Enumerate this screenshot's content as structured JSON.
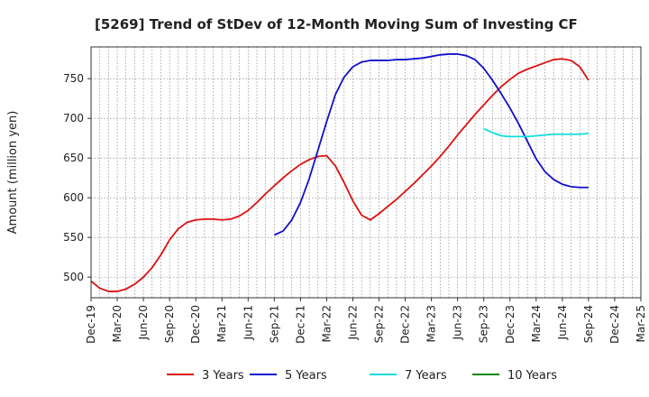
{
  "chart_data": {
    "type": "line",
    "title": "[5269]  Trend of StDev of 12-Month Moving Sum of Investing CF",
    "ylabel": "Amount (million yen)",
    "xlabel": "",
    "ylim": [
      474,
      790
    ],
    "yticks": [
      500,
      550,
      600,
      650,
      700,
      750
    ],
    "xticks": [
      "Dec-19",
      "Mar-20",
      "Jun-20",
      "Sep-20",
      "Dec-20",
      "Mar-21",
      "Jun-21",
      "Sep-21",
      "Dec-21",
      "Mar-22",
      "Jun-22",
      "Sep-22",
      "Dec-22",
      "Mar-23",
      "Jun-23",
      "Sep-23",
      "Dec-23",
      "Mar-24",
      "Jun-24",
      "Sep-24",
      "Dec-24",
      "Mar-25"
    ],
    "grid": true,
    "legend_position": "bottom",
    "series": [
      {
        "name": "3 Years",
        "color": "#dd1111",
        "x_start_index": 0,
        "values": [
          495,
          486,
          482,
          482,
          485,
          491,
          500,
          512,
          528,
          547,
          561,
          569,
          572,
          573,
          573,
          572,
          573,
          577,
          584,
          594,
          605,
          615,
          625,
          634,
          642,
          648,
          652,
          653,
          640,
          619,
          596,
          578,
          572,
          580,
          589,
          598,
          608,
          618,
          629,
          640,
          652,
          665,
          679,
          692,
          705,
          717,
          729,
          740,
          749,
          757,
          762,
          766,
          770,
          774,
          775,
          773,
          765,
          748
        ]
      },
      {
        "name": "5 Years",
        "color": "#1111cc",
        "x_start_index": 21,
        "values": [
          553,
          558,
          572,
          594,
          624,
          660,
          696,
          730,
          752,
          765,
          771,
          773,
          773,
          773,
          774,
          774,
          775,
          776,
          778,
          780,
          781,
          781,
          779,
          774,
          763,
          748,
          731,
          713,
          693,
          671,
          649,
          633,
          623,
          617,
          614,
          613,
          613
        ]
      },
      {
        "name": "7 Years",
        "color": "#11dddd",
        "x_start_index": 45,
        "values": [
          687,
          682,
          678,
          677,
          677,
          677,
          678,
          679,
          680,
          680,
          680,
          680,
          681
        ]
      },
      {
        "name": "10 Years",
        "color": "#118811",
        "x_start_index": 0,
        "values": []
      }
    ]
  }
}
